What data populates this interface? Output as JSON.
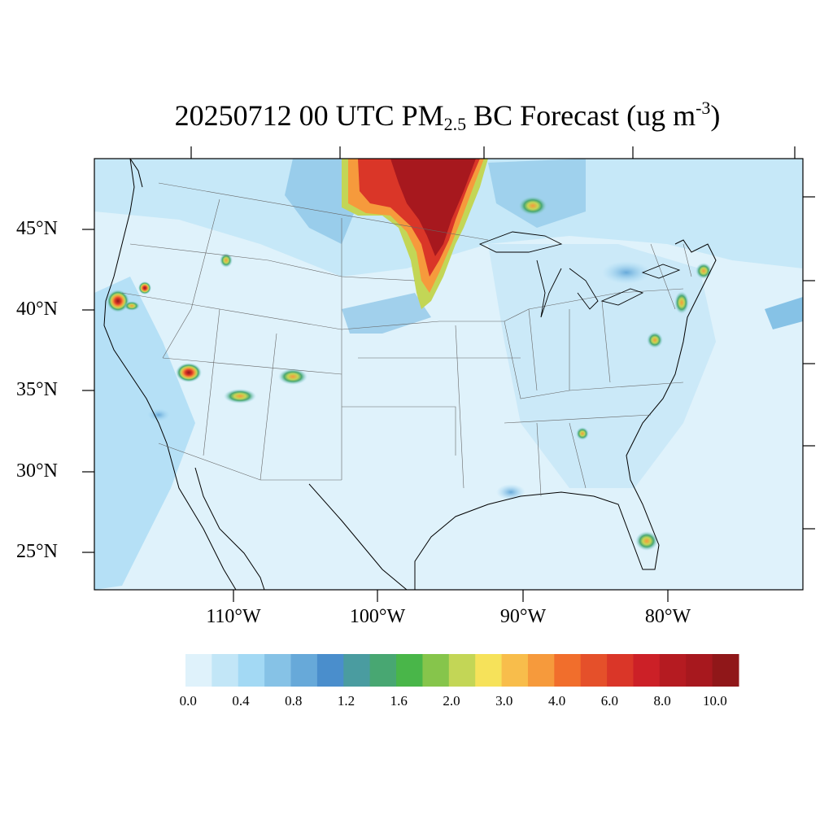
{
  "title": {
    "prefix": "20250712 00 UTC PM",
    "sub": "2.5",
    "middle": " BC Forecast (ug m",
    "sup": "-3",
    "suffix": ")"
  },
  "lat_labels": [
    "45°N",
    "40°N",
    "35°N",
    "30°N",
    "25°N"
  ],
  "lon_labels": [
    "110°W",
    "100°W",
    "90°W",
    "80°W"
  ],
  "colorbar": {
    "colors": [
      "#dff2fb",
      "#c2e6f7",
      "#a3d9f4",
      "#86c2e6",
      "#67a9d9",
      "#4a8ecc",
      "#4a9ca0",
      "#48a772",
      "#49b649",
      "#86c54b",
      "#c3d656",
      "#f6e25a",
      "#f8bd4b",
      "#f69a3c",
      "#f16e2c",
      "#e5502a",
      "#da3628",
      "#cc2027",
      "#b51b21",
      "#a7181e",
      "#901719"
    ],
    "labels": [
      "0.0",
      "0.4",
      "0.8",
      "1.2",
      "1.6",
      "2.0",
      "3.0",
      "4.0",
      "6.0",
      "8.0",
      "10.0"
    ]
  },
  "map": {
    "background_color": "#dff2fb",
    "hotspots": [
      {
        "name": "canada-smoke-plume",
        "lon": -96,
        "lat": 47.5,
        "value": 10.0
      },
      {
        "name": "manitoba-smoke",
        "lon": -101,
        "lat": 47,
        "value": 6.0
      },
      {
        "name": "northern-california-fire",
        "lon": -122.8,
        "lat": 40.5,
        "value": 8.0
      },
      {
        "name": "oregon-fire",
        "lon": -120.5,
        "lat": 41.2,
        "value": 6.0
      },
      {
        "name": "arizona-fire",
        "lon": -112.3,
        "lat": 36.1,
        "value": 8.0
      },
      {
        "name": "new-mexico-fire",
        "lon": -105.5,
        "lat": 35.8,
        "value": 4.0
      },
      {
        "name": "arizona-east-fire",
        "lon": -109.5,
        "lat": 34.6,
        "value": 3.0
      },
      {
        "name": "idaho-fire",
        "lon": -113.5,
        "lat": 43.1,
        "value": 3.0
      },
      {
        "name": "florida-fire",
        "lon": -81.2,
        "lat": 26.2,
        "value": 4.0
      },
      {
        "name": "new-york-city",
        "lon": -74,
        "lat": 40.7,
        "value": 3.0
      }
    ]
  }
}
